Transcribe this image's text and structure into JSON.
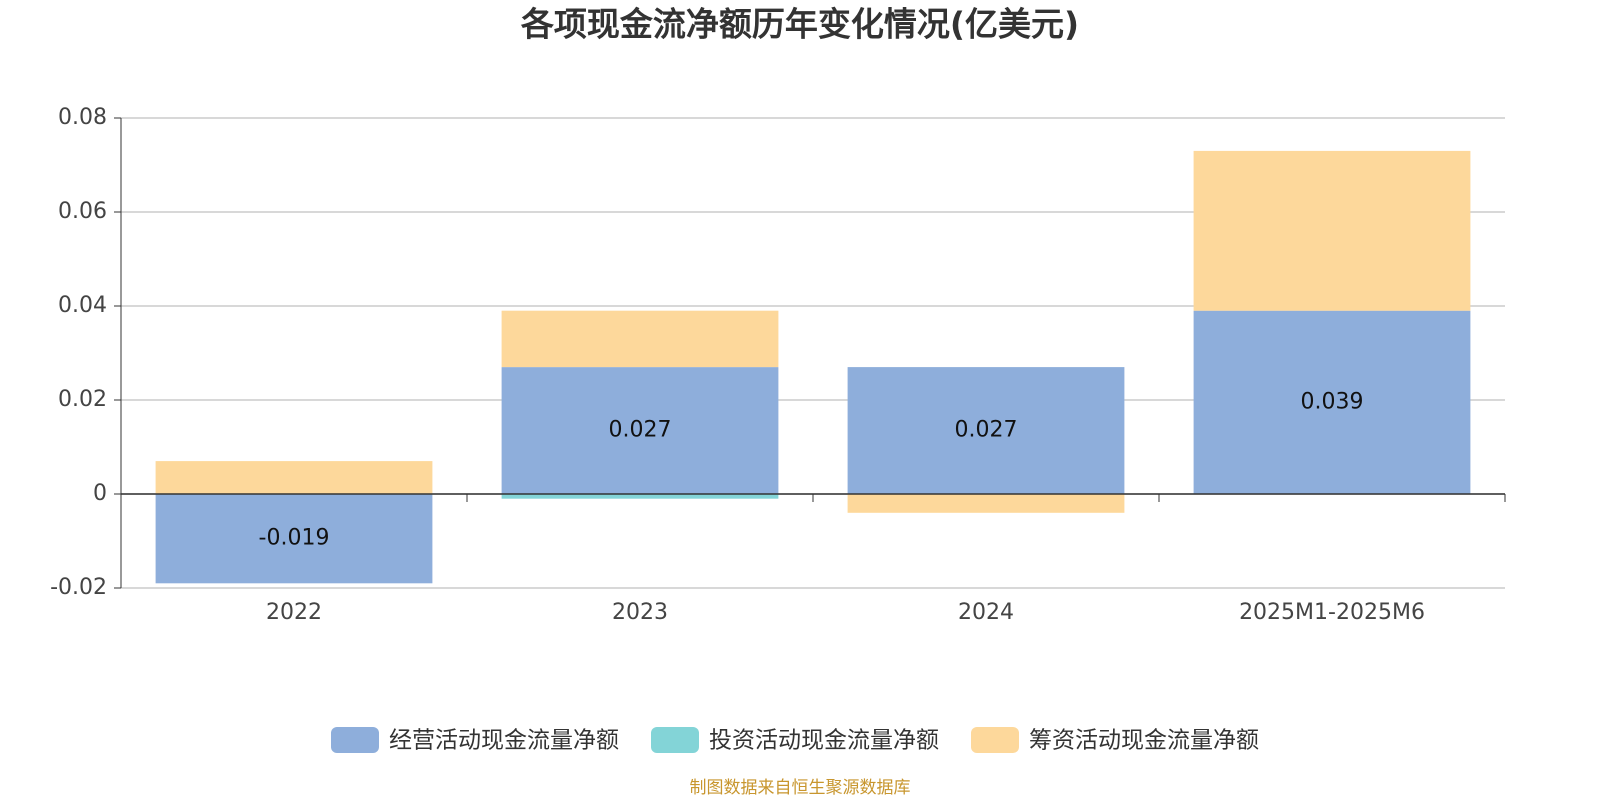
{
  "chart_data": {
    "type": "bar",
    "stacked": true,
    "title": "各项现金流净额历年变化情况(亿美元)",
    "categories": [
      "2022",
      "2023",
      "2024",
      "2025M1-2025M6"
    ],
    "series": [
      {
        "name": "经营活动现金流量净额",
        "color": "#8eaedb",
        "values": [
          -0.019,
          0.027,
          0.027,
          0.039
        ],
        "show_labels": true
      },
      {
        "name": "投资活动现金流量净额",
        "color": "#83d4d7",
        "values": [
          0,
          -0.001,
          0,
          0
        ],
        "show_labels": false
      },
      {
        "name": "筹资活动现金流量净额",
        "color": "#fdd89b",
        "values": [
          0.007,
          0.012,
          -0.004,
          0.034
        ],
        "show_labels": false
      }
    ],
    "ylim": [
      -0.02,
      0.08
    ],
    "yticks": [
      -0.02,
      0,
      0.02,
      0.04,
      0.06,
      0.08
    ],
    "grid": true,
    "legend": "bottom",
    "footer": "制图数据来自恒生聚源数据库"
  }
}
